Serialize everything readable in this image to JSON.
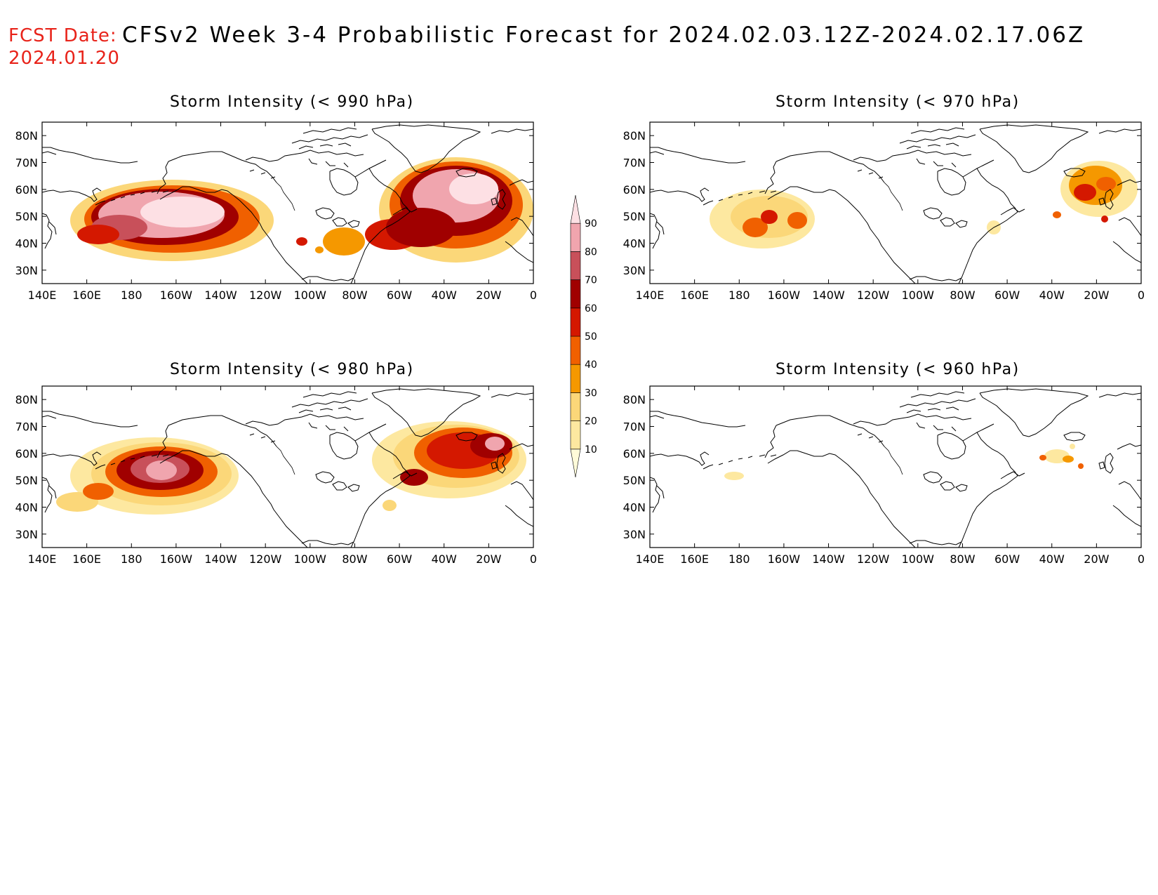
{
  "header": {
    "fcst_label": "FCST Date:",
    "fcst_date": "2024.01.20",
    "title": "CFSv2 Week 3-4 Probabilistic Forecast for 2024.02.03.12Z-2024.02.17.06Z"
  },
  "panels": [
    {
      "id": "p990",
      "title": "Storm Intensity (< 990 hPa)"
    },
    {
      "id": "p970",
      "title": "Storm Intensity (< 970 hPa)"
    },
    {
      "id": "p980",
      "title": "Storm Intensity (< 980 hPa)"
    },
    {
      "id": "p960",
      "title": "Storm Intensity (< 960 hPa)"
    }
  ],
  "axes": {
    "lat_labels": [
      "80N",
      "70N",
      "60N",
      "50N",
      "40N",
      "30N"
    ],
    "lat_values": [
      80,
      70,
      60,
      50,
      40,
      30
    ],
    "lat_range": [
      25,
      85
    ],
    "lon_labels": [
      "140E",
      "160E",
      "180",
      "160W",
      "140W",
      "120W",
      "100W",
      "80W",
      "60W",
      "40W",
      "20W",
      "0"
    ],
    "lon_values": [
      140,
      160,
      180,
      200,
      220,
      240,
      260,
      280,
      300,
      320,
      340,
      360
    ],
    "lon_range": [
      140,
      360
    ]
  },
  "colorbar": {
    "levels": [
      "10",
      "20",
      "30",
      "40",
      "50",
      "60",
      "70",
      "80",
      "90"
    ],
    "colors": [
      "#fffbd9",
      "#fde8a0",
      "#fbd779",
      "#f59800",
      "#f06000",
      "#d41800",
      "#a00000",
      "#c8505a",
      "#f0a5ae",
      "#fde0e4"
    ]
  }
}
